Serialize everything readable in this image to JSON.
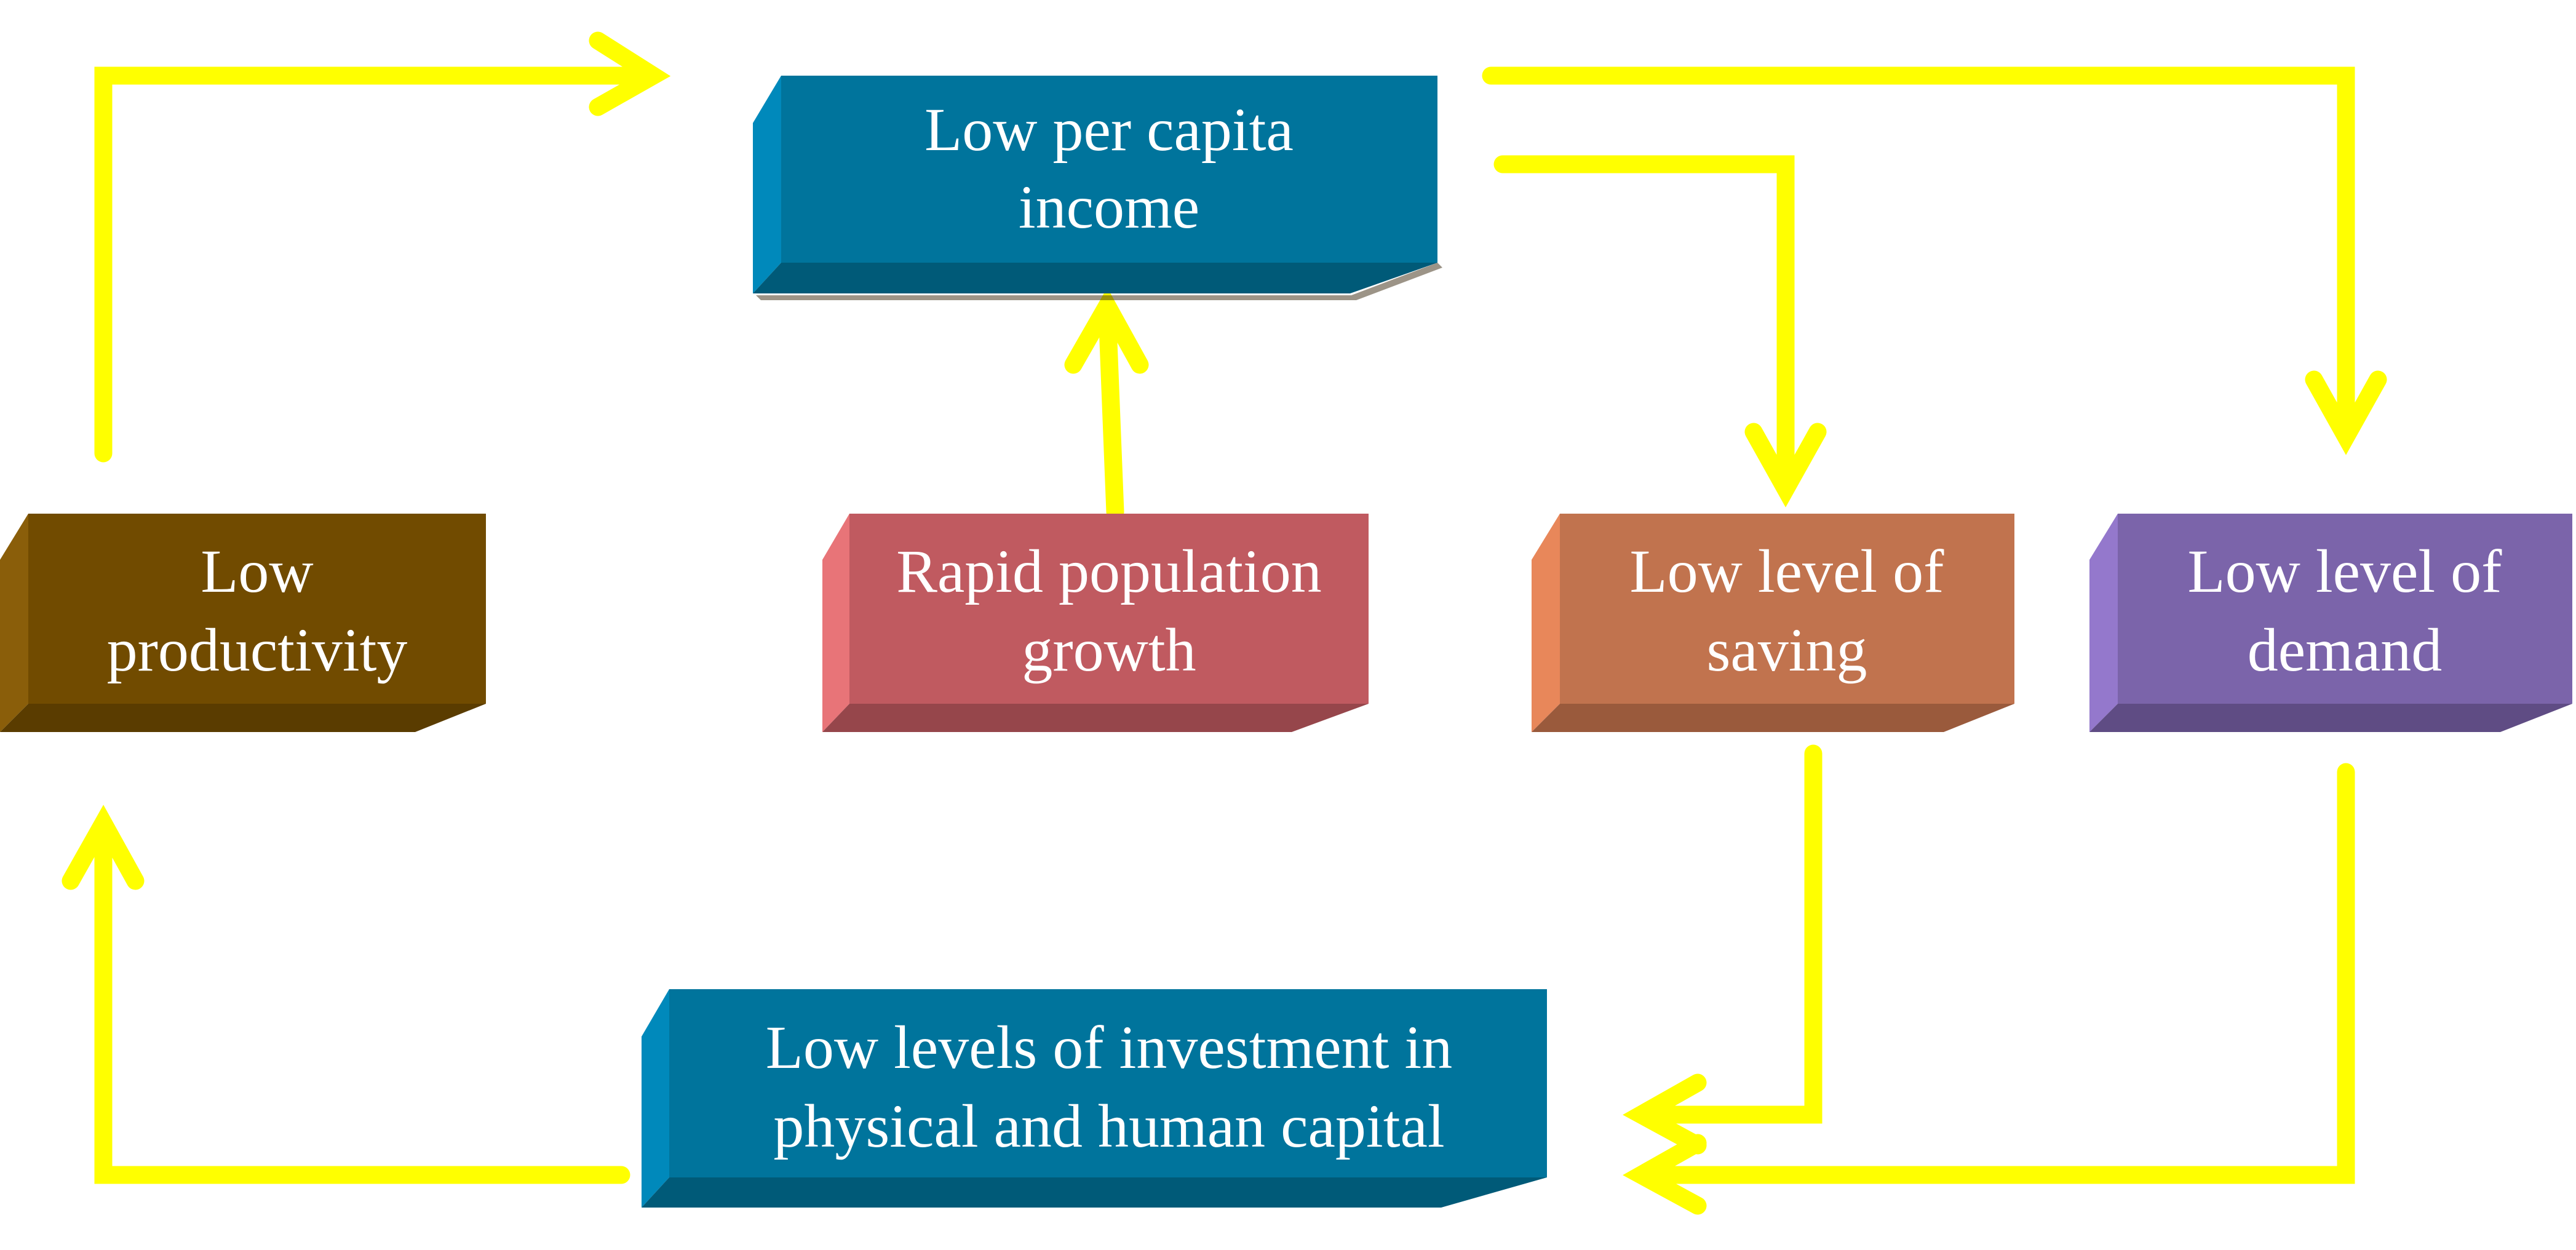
{
  "colors": {
    "arrow": "#ffff00",
    "background": "#ffffff",
    "income": {
      "front": "#00749c",
      "side": "#0089bb",
      "bottom": "#005a78"
    },
    "productivity": {
      "front": "#714b00",
      "side": "#8a5e0a",
      "bottom": "#5a3c00"
    },
    "population": {
      "front": "#c05a60",
      "side": "#e87478",
      "bottom": "#96464b"
    },
    "saving": {
      "front": "#c1734e",
      "side": "#e8875a",
      "bottom": "#9a5a3c"
    },
    "demand": {
      "front": "#7b64aa",
      "side": "#9478cc",
      "bottom": "#5f4c84"
    },
    "investment": {
      "front": "#00749c",
      "side": "#0089bb",
      "bottom": "#005a78"
    }
  },
  "nodes": {
    "income": {
      "line1": "Low per capita",
      "line2": "income"
    },
    "productivity": {
      "line1": "Low",
      "line2": "productivity"
    },
    "population": {
      "line1": "Rapid population",
      "line2": "growth"
    },
    "saving": {
      "line1": "Low level of",
      "line2": "saving"
    },
    "demand": {
      "line1": "Low level of",
      "line2": "demand"
    },
    "investment": {
      "line1": "Low levels of investment in",
      "line2": "physical and human capital"
    }
  },
  "edges": [
    {
      "from": "productivity",
      "to": "income"
    },
    {
      "from": "population",
      "to": "income"
    },
    {
      "from": "income",
      "to": "saving"
    },
    {
      "from": "income",
      "to": "demand"
    },
    {
      "from": "saving",
      "to": "investment"
    },
    {
      "from": "demand",
      "to": "investment"
    },
    {
      "from": "investment",
      "to": "productivity"
    }
  ]
}
